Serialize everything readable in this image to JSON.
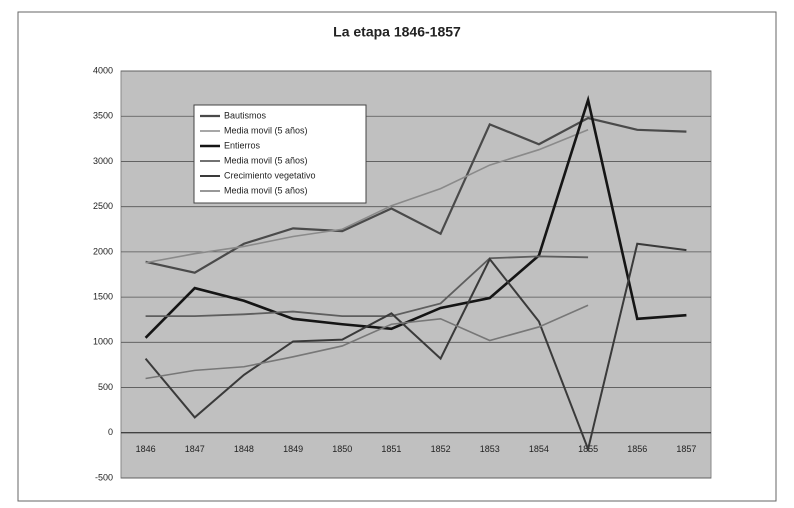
{
  "chart_data": {
    "type": "line",
    "title": "La etapa 1846-1857",
    "categories": [
      "1846",
      "1847",
      "1848",
      "1849",
      "1850",
      "1851",
      "1852",
      "1853",
      "1854",
      "1855",
      "1856",
      "1857"
    ],
    "series": [
      {
        "name": "Bautismos",
        "color": "#4a4a4a",
        "width": 2.2,
        "values": [
          1890,
          1770,
          2090,
          2260,
          2230,
          2480,
          2200,
          3410,
          3190,
          3480,
          3350,
          3330
        ]
      },
      {
        "name": "Media movil (5 años)",
        "color": "#8a8a8a",
        "width": 1.6,
        "values": [
          1880,
          1980,
          2060,
          2170,
          2250,
          2510,
          2700,
          2960,
          3130,
          3350,
          null,
          null
        ]
      },
      {
        "name": "Entierros",
        "color": "#151515",
        "width": 2.6,
        "values": [
          1050,
          1600,
          1460,
          1260,
          1200,
          1150,
          1380,
          1490,
          1960,
          3680,
          1260,
          1300
        ]
      },
      {
        "name": "Media movil (5 años)",
        "color": "#5e5e5e",
        "width": 1.8,
        "values": [
          1290,
          1290,
          1310,
          1340,
          1290,
          1290,
          1430,
          1930,
          1950,
          1940,
          null,
          null
        ]
      },
      {
        "name": "Crecimiento vegetativo",
        "color": "#3a3a3a",
        "width": 2.0,
        "values": [
          820,
          170,
          640,
          1010,
          1030,
          1320,
          820,
          1920,
          1230,
          -180,
          2090,
          2020
        ]
      },
      {
        "name": "Media movil (5 años)",
        "color": "#777777",
        "width": 1.6,
        "values": [
          600,
          690,
          730,
          840,
          960,
          1200,
          1260,
          1020,
          1170,
          1410,
          null,
          null
        ]
      }
    ],
    "ylim": [
      -500,
      4000
    ],
    "yticks": [
      -500,
      0,
      500,
      1000,
      1500,
      2000,
      2500,
      3000,
      3500,
      4000
    ],
    "grid": true
  }
}
